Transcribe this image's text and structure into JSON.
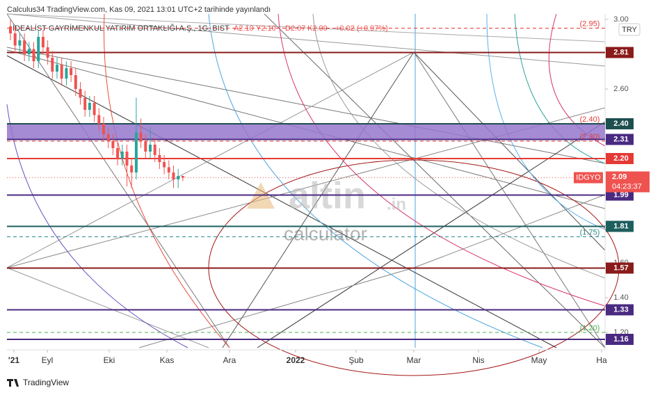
{
  "header": {
    "published": "Calculus34 TradingView.com, Kas 09, 2021 13:01 UTC+2 tarihinde yayınlandı",
    "symbol_title": "İDEALİST GAYRİMENKUL YATIRIM ORTAKLIĞI A.Ş., 1G, BIST",
    "ohlc": [
      "A2.10",
      "Y2.10",
      "D2.07",
      "K2.09",
      "+0.02 (+0.97%)"
    ],
    "currency": "TRY"
  },
  "watermark": {
    "brand": "altin",
    "brand_suffix": ".in",
    "subtitle": "calculator"
  },
  "footer": "TradingView",
  "chart_data": {
    "type": "candlestick",
    "categories": [
      "'21",
      "Eyl",
      "Eki",
      "Kas",
      "Ara",
      "2022",
      "Şub",
      "Mar",
      "Nis",
      "May",
      "Ha"
    ],
    "up_color": "#26a69a",
    "down_color": "#ef5350",
    "open": [
      2.96,
      2.92,
      2.85,
      2.88,
      2.8,
      2.83,
      2.76,
      2.9,
      2.84,
      2.78,
      2.7,
      2.74,
      2.66,
      2.72,
      2.68,
      2.6,
      2.55,
      2.48,
      2.52,
      2.45,
      2.4,
      2.34,
      2.3,
      2.26,
      2.2,
      2.24,
      2.16,
      2.12,
      2.35,
      2.3,
      2.24,
      2.28,
      2.22,
      2.18,
      2.15,
      2.12,
      2.08,
      2.1
    ],
    "high": [
      3.0,
      2.96,
      2.92,
      2.92,
      2.87,
      2.87,
      2.94,
      2.94,
      2.88,
      2.82,
      2.78,
      2.78,
      2.76,
      2.76,
      2.72,
      2.64,
      2.59,
      2.56,
      2.56,
      2.49,
      2.44,
      2.38,
      2.34,
      2.3,
      2.28,
      2.28,
      2.2,
      2.55,
      2.43,
      2.34,
      2.38,
      2.32,
      2.26,
      2.22,
      2.19,
      2.16,
      2.14,
      2.1
    ],
    "low": [
      2.88,
      2.81,
      2.81,
      2.76,
      2.76,
      2.72,
      2.72,
      2.8,
      2.74,
      2.66,
      2.66,
      2.62,
      2.62,
      2.64,
      2.56,
      2.51,
      2.44,
      2.44,
      2.41,
      2.36,
      2.3,
      2.26,
      2.22,
      2.16,
      2.16,
      2.04,
      2.03,
      2.08,
      2.26,
      2.2,
      2.2,
      2.18,
      2.14,
      2.11,
      2.08,
      2.03,
      2.03,
      2.07
    ],
    "close": [
      2.92,
      2.85,
      2.88,
      2.8,
      2.83,
      2.76,
      2.9,
      2.84,
      2.78,
      2.7,
      2.74,
      2.66,
      2.72,
      2.68,
      2.6,
      2.55,
      2.48,
      2.52,
      2.45,
      2.4,
      2.34,
      2.3,
      2.26,
      2.2,
      2.24,
      2.16,
      2.12,
      2.35,
      2.3,
      2.24,
      2.28,
      2.22,
      2.18,
      2.15,
      2.12,
      2.08,
      2.1,
      2.09
    ],
    "ylim": [
      1.112,
      3.032
    ],
    "yticks": [
      {
        "value": 3,
        "label": "3.00"
      },
      {
        "value": 2.6,
        "label": "2.60"
      },
      {
        "value": 1.6,
        "label": "1.60"
      },
      {
        "value": 1.4,
        "label": "1.40"
      },
      {
        "value": 1.2,
        "label": "1.20"
      }
    ],
    "levels": [
      {
        "value": 2.95,
        "label": "(2.95)",
        "color": "#e53935",
        "style": "dashed"
      },
      {
        "value": 2.81,
        "color": "#8b1a1a",
        "style": "solid"
      },
      {
        "value": 2.4,
        "label": "(2.40)",
        "color": "#e53935",
        "style": "text"
      },
      {
        "value": 2.4,
        "label": "2.40",
        "color": "#1d4f4f",
        "style": "solid"
      },
      {
        "value": 2.3,
        "label": "(2.30)",
        "color": "#e53935",
        "style": "dashed"
      },
      {
        "value": 2.31,
        "color": "#4a2a80",
        "style": "solid"
      },
      {
        "value": 2.2,
        "label": "2.20",
        "color": "#e53935",
        "style": "solid"
      },
      {
        "value": 1.99,
        "color": "#4a2a80",
        "style": "solid"
      },
      {
        "value": 1.81,
        "color": "#1d5e5e",
        "style": "solid"
      },
      {
        "value": 1.75,
        "label": "(1.75)",
        "color": "#2a8a8a",
        "style": "dashed"
      },
      {
        "value": 1.57,
        "color": "#8b1a1a",
        "style": "solid"
      },
      {
        "value": 1.33,
        "color": "#4a2a80",
        "style": "solid"
      },
      {
        "value": 1.2,
        "label": "(1.20)",
        "color": "#4caf50",
        "style": "dashed"
      },
      {
        "value": 1.16,
        "color": "#4a2a80",
        "style": "solid"
      }
    ],
    "zone": {
      "top": 2.4,
      "bottom": 2.31,
      "color": "#9575cd"
    },
    "last": {
      "value": 2.09,
      "symbol": "IDGYO",
      "countdown": "04:23:37",
      "color": "#ef5350"
    }
  }
}
